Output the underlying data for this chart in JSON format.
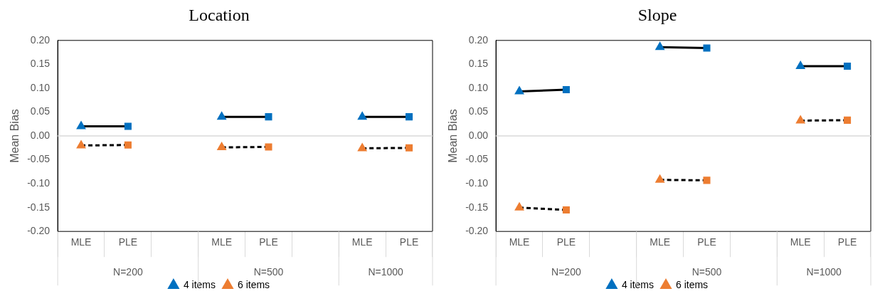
{
  "chart_data": [
    {
      "type": "line",
      "title": "Location",
      "ylabel": "Mean Bias",
      "categories": [
        "MLE",
        "PLE",
        null,
        "MLE",
        "PLE",
        null,
        "MLE",
        "PLE"
      ],
      "ylim": [
        -0.2,
        0.2
      ],
      "yticks": [
        {
          "value": -0.2,
          "label": "-0.20"
        },
        {
          "value": -0.15,
          "label": "-0.15"
        },
        {
          "value": -0.1,
          "label": "-0.10"
        },
        {
          "value": -0.05,
          "label": "-0.05"
        },
        {
          "value": 0,
          "label": "0.00"
        },
        {
          "value": 0.05,
          "label": "0.05"
        },
        {
          "value": 0.1,
          "label": "0.10"
        },
        {
          "value": 0.15,
          "label": "0.15"
        },
        {
          "value": 0.2,
          "label": "0.20"
        }
      ],
      "grid": false,
      "legend": "bottom",
      "annotations": [
        "N=200",
        "N=500",
        "N=1000"
      ],
      "ref_lines": [
        {
          "axis": "y",
          "value": 0,
          "color": "#d9d9d9"
        }
      ],
      "series": [
        {
          "name": "4 items",
          "color": "#0070c0",
          "line_style": "solid",
          "marker": "triangle",
          "values": [
            0.02,
            0.02,
            null,
            0.04,
            0.04,
            null,
            0.04,
            0.04
          ]
        },
        {
          "name": "6 items",
          "color": "#ed7d31",
          "line_style": "dashed",
          "marker": "triangle",
          "values": [
            -0.02,
            -0.019,
            null,
            -0.024,
            -0.023,
            null,
            -0.026,
            -0.025
          ]
        }
      ]
    },
    {
      "type": "line",
      "title": "Slope",
      "ylabel": "Mean Bias",
      "categories": [
        "MLE",
        "PLE",
        null,
        "MLE",
        "PLE",
        null,
        "MLE",
        "PLE"
      ],
      "ylim": [
        -0.2,
        0.2
      ],
      "yticks": [
        {
          "value": -0.2,
          "label": "-0.20"
        },
        {
          "value": -0.15,
          "label": "-0.15"
        },
        {
          "value": -0.1,
          "label": "-0.10"
        },
        {
          "value": -0.05,
          "label": "-0.05"
        },
        {
          "value": 0,
          "label": "0.00"
        },
        {
          "value": 0.05,
          "label": "0.05"
        },
        {
          "value": 0.1,
          "label": "0.10"
        },
        {
          "value": 0.15,
          "label": "0.15"
        },
        {
          "value": 0.2,
          "label": "0.20"
        }
      ],
      "grid": false,
      "legend": "bottom",
      "annotations": [
        "N=200",
        "N=500",
        "N=1000"
      ],
      "ref_lines": [
        {
          "axis": "y",
          "value": 0,
          "color": "#d9d9d9"
        }
      ],
      "series": [
        {
          "name": "4 items",
          "color": "#0070c0",
          "line_style": "solid",
          "marker": "triangle",
          "values": [
            0.093,
            0.097,
            null,
            0.186,
            0.184,
            null,
            0.146,
            0.146
          ]
        },
        {
          "name": "6 items",
          "color": "#ed7d31",
          "line_style": "dashed",
          "marker": "triangle",
          "values": [
            -0.15,
            -0.155,
            null,
            -0.092,
            -0.093,
            null,
            0.032,
            0.033
          ]
        }
      ]
    }
  ]
}
